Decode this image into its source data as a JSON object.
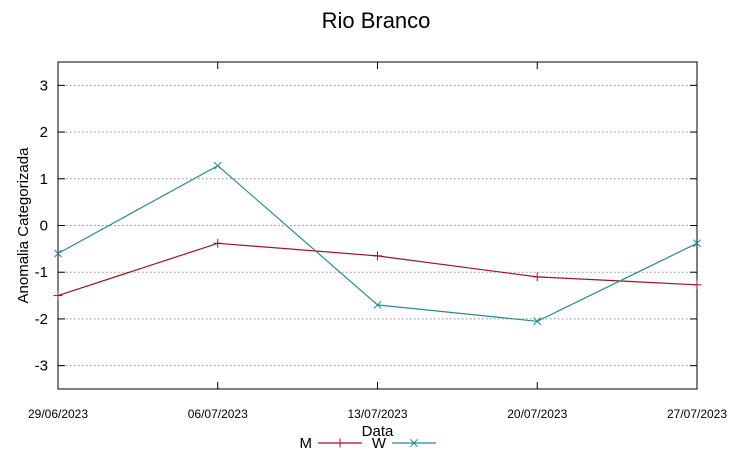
{
  "chart_data": {
    "type": "line",
    "title": "Rio Branco",
    "xlabel": "Data",
    "ylabel": "Anomalia Categorizada",
    "categories": [
      "29/06/2023",
      "06/07/2023",
      "13/07/2023",
      "20/07/2023",
      "27/07/2023"
    ],
    "yticks": [
      "3",
      "2",
      "1",
      "0",
      "-1",
      "-2",
      "-3"
    ],
    "ylim": [
      -3.5,
      3.5
    ],
    "grid": true,
    "legend_position": "bottom",
    "series": [
      {
        "name": "M",
        "color": "#a0141e",
        "marker": "plus",
        "values": [
          -1.5,
          -0.38,
          -0.65,
          -1.1,
          -1.27
        ]
      },
      {
        "name": "W",
        "color": "#2a8a8e",
        "marker": "cross",
        "values": [
          -0.6,
          1.28,
          -1.7,
          -2.05,
          -0.38
        ]
      }
    ]
  }
}
